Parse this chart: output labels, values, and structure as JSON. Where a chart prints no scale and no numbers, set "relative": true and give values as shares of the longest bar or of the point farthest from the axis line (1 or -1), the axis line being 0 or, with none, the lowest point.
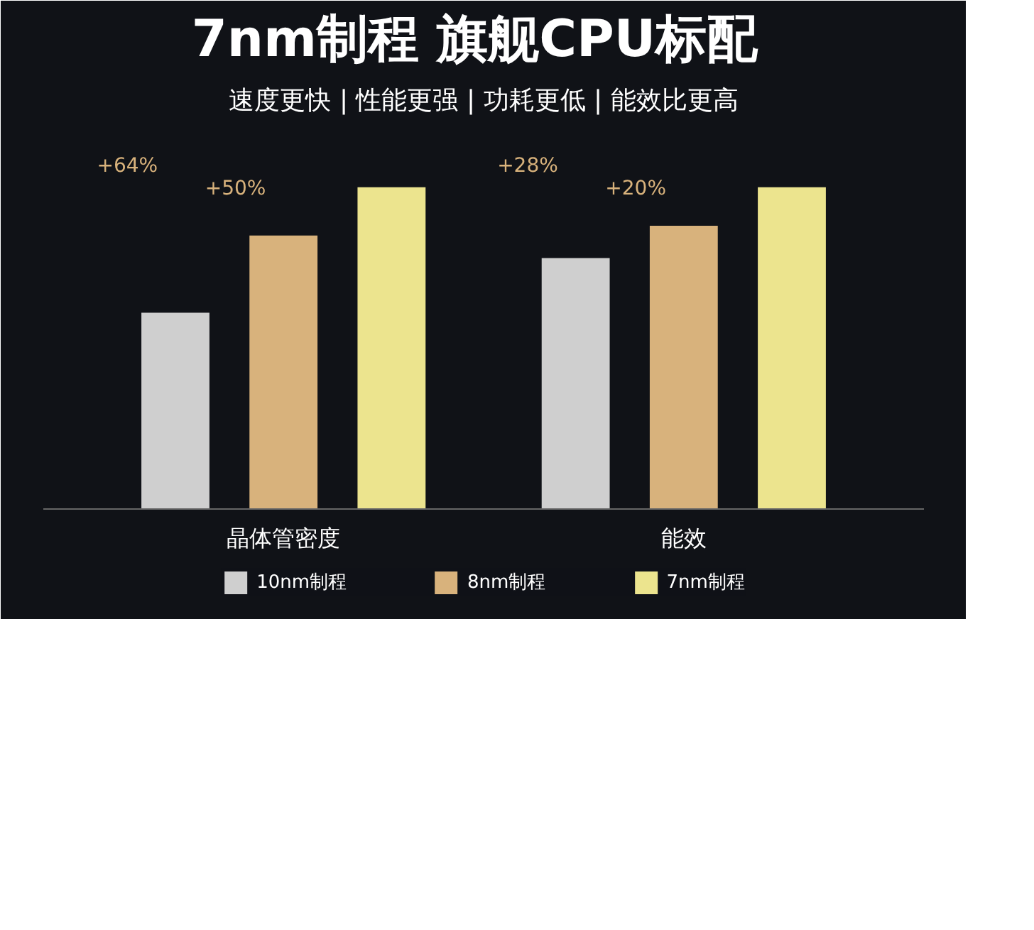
{
  "chart_data": {
    "type": "bar",
    "title": "7nm制程  旗舰CPU标配",
    "subtitle": "速度更快 | 性能更强 | 功耗更低 | 能效比更高",
    "categories": [
      "晶体管密度",
      "能效"
    ],
    "relative": true,
    "series": [
      {
        "name": "10nm制程",
        "color": "#cfcfcf",
        "values": [
          0.61,
          0.78
        ]
      },
      {
        "name": "8nm制程",
        "color": "#d8b27c",
        "values": [
          0.85,
          0.88
        ]
      },
      {
        "name": "7nm制程",
        "color": "#ece48e",
        "values": [
          1,
          1
        ]
      }
    ],
    "annotations": [
      "+64%",
      "+50%",
      "+28%",
      "+20%"
    ],
    "legend": "bottom"
  }
}
